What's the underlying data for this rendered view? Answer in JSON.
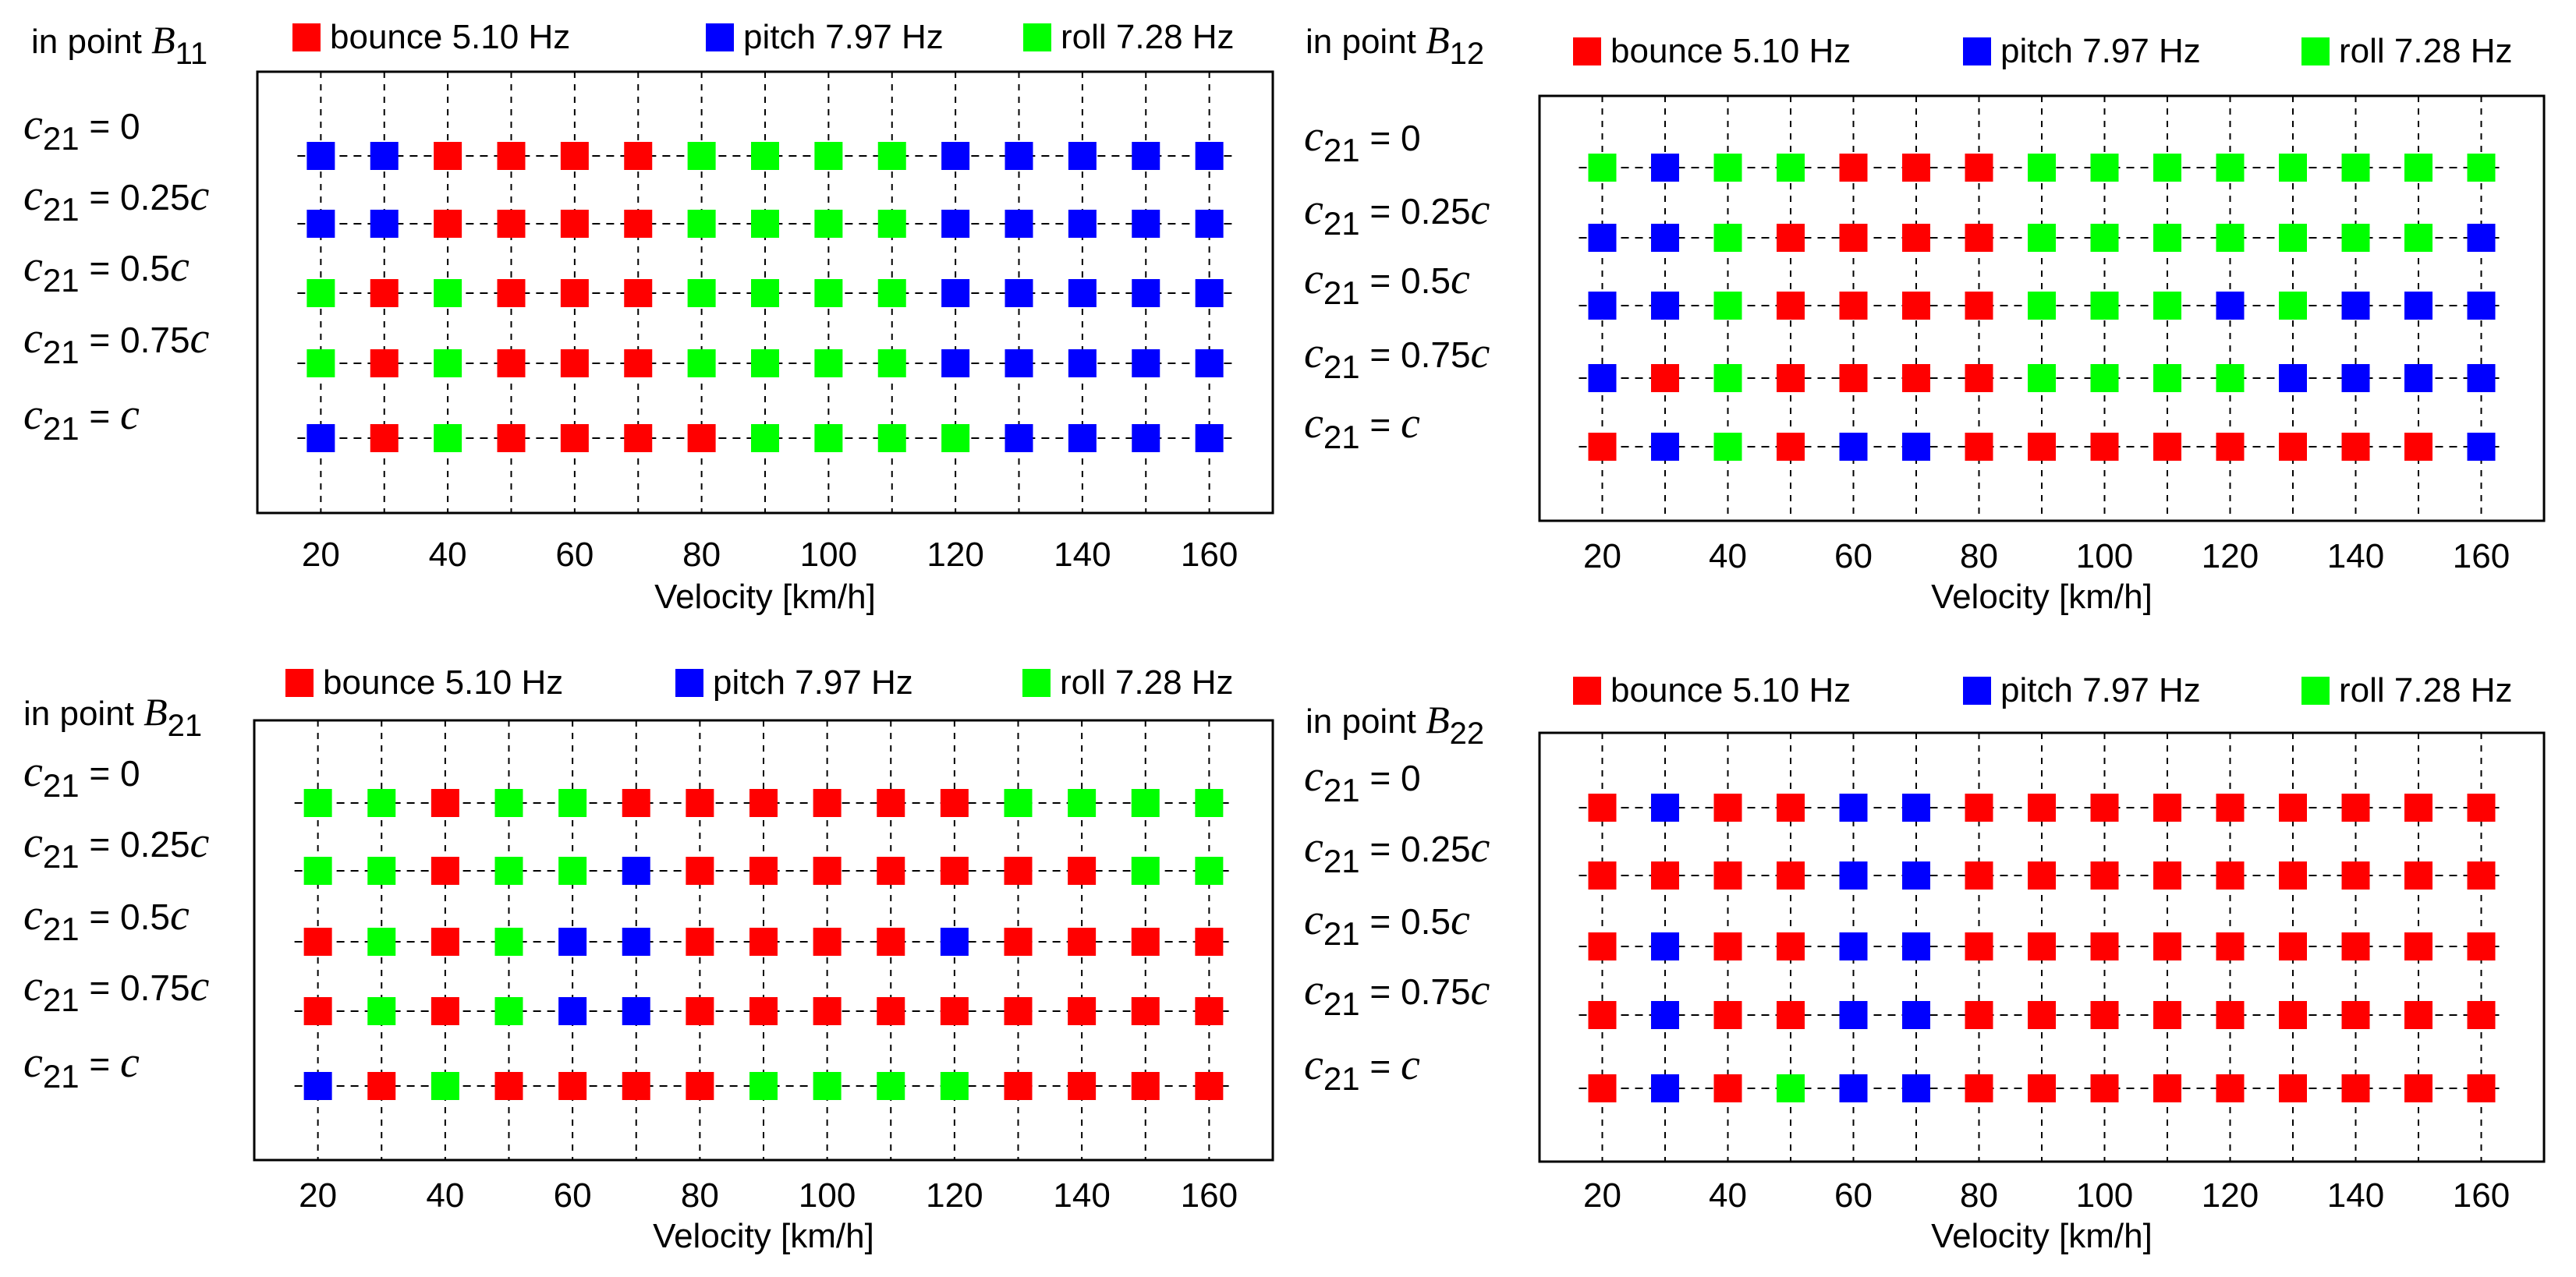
{
  "colors": {
    "bounce": "#ff0000",
    "pitch": "#0000ff",
    "roll": "#00ff00",
    "grid": "#000000",
    "frame": "#000000"
  },
  "legend": [
    {
      "key": "bounce",
      "name": "bounce",
      "freq": "5.10 Hz"
    },
    {
      "key": "pitch",
      "name": "pitch",
      "freq": "7.97 Hz"
    },
    {
      "key": "roll",
      "name": "roll",
      "freq": "7.28 Hz"
    }
  ],
  "chart_data": [
    {
      "type": "scatter",
      "title_prefix": "in point ",
      "title_var": "B",
      "title_sub": "11",
      "xlabel": "Velocity [km/h]",
      "xlim": [
        10,
        170
      ],
      "xticks": [
        20,
        40,
        60,
        80,
        100,
        120,
        140,
        160
      ],
      "x": [
        20,
        30,
        40,
        50,
        60,
        70,
        80,
        90,
        100,
        110,
        120,
        130,
        140,
        150,
        160
      ],
      "rows": [
        {
          "c": "c",
          "sub": "21",
          "eq": " = ",
          "val": "0",
          "val_c": "",
          "modes": [
            "pitch",
            "pitch",
            "bounce",
            "bounce",
            "bounce",
            "bounce",
            "roll",
            "roll",
            "roll",
            "roll",
            "pitch",
            "pitch",
            "pitch",
            "pitch",
            "pitch"
          ]
        },
        {
          "c": "c",
          "sub": "21",
          "eq": " = ",
          "val": "0.25",
          "val_c": "c",
          "modes": [
            "pitch",
            "pitch",
            "bounce",
            "bounce",
            "bounce",
            "bounce",
            "roll",
            "roll",
            "roll",
            "roll",
            "pitch",
            "pitch",
            "pitch",
            "pitch",
            "pitch"
          ]
        },
        {
          "c": "c",
          "sub": "21",
          "eq": " = ",
          "val": "0.5",
          "val_c": "c",
          "modes": [
            "roll",
            "bounce",
            "roll",
            "bounce",
            "bounce",
            "bounce",
            "roll",
            "roll",
            "roll",
            "roll",
            "pitch",
            "pitch",
            "pitch",
            "pitch",
            "pitch"
          ]
        },
        {
          "c": "c",
          "sub": "21",
          "eq": " = ",
          "val": "0.75",
          "val_c": "c",
          "modes": [
            "roll",
            "bounce",
            "roll",
            "bounce",
            "bounce",
            "bounce",
            "roll",
            "roll",
            "roll",
            "roll",
            "pitch",
            "pitch",
            "pitch",
            "pitch",
            "pitch"
          ]
        },
        {
          "c": "c",
          "sub": "21",
          "eq": " = ",
          "val": "",
          "val_c": "c",
          "modes": [
            "pitch",
            "bounce",
            "roll",
            "bounce",
            "bounce",
            "bounce",
            "bounce",
            "roll",
            "roll",
            "roll",
            "roll",
            "pitch",
            "pitch",
            "pitch",
            "pitch"
          ]
        }
      ]
    },
    {
      "type": "scatter",
      "title_prefix": "in point ",
      "title_var": "B",
      "title_sub": "12",
      "xlabel": "Velocity [km/h]",
      "xlim": [
        10,
        170
      ],
      "xticks": [
        20,
        40,
        60,
        80,
        100,
        120,
        140,
        160
      ],
      "x": [
        20,
        30,
        40,
        50,
        60,
        70,
        80,
        90,
        100,
        110,
        120,
        130,
        140,
        150,
        160
      ],
      "rows": [
        {
          "c": "c",
          "sub": "21",
          "eq": " = ",
          "val": "0",
          "val_c": "",
          "modes": [
            "roll",
            "pitch",
            "roll",
            "roll",
            "bounce",
            "bounce",
            "bounce",
            "roll",
            "roll",
            "roll",
            "roll",
            "roll",
            "roll",
            "roll",
            "roll"
          ]
        },
        {
          "c": "c",
          "sub": "21",
          "eq": " = ",
          "val": "0.25",
          "val_c": "c",
          "modes": [
            "pitch",
            "pitch",
            "roll",
            "bounce",
            "bounce",
            "bounce",
            "bounce",
            "roll",
            "roll",
            "roll",
            "roll",
            "roll",
            "roll",
            "roll",
            "pitch"
          ]
        },
        {
          "c": "c",
          "sub": "21",
          "eq": " = ",
          "val": "0.5",
          "val_c": "c",
          "modes": [
            "pitch",
            "pitch",
            "roll",
            "bounce",
            "bounce",
            "bounce",
            "bounce",
            "roll",
            "roll",
            "roll",
            "pitch",
            "roll",
            "pitch",
            "pitch",
            "pitch"
          ]
        },
        {
          "c": "c",
          "sub": "21",
          "eq": " = ",
          "val": "0.75",
          "val_c": "c",
          "modes": [
            "pitch",
            "bounce",
            "roll",
            "bounce",
            "bounce",
            "bounce",
            "bounce",
            "roll",
            "roll",
            "roll",
            "roll",
            "pitch",
            "pitch",
            "pitch",
            "pitch"
          ]
        },
        {
          "c": "c",
          "sub": "21",
          "eq": " = ",
          "val": "",
          "val_c": "c",
          "modes": [
            "bounce",
            "pitch",
            "roll",
            "bounce",
            "pitch",
            "pitch",
            "bounce",
            "bounce",
            "bounce",
            "bounce",
            "bounce",
            "bounce",
            "bounce",
            "bounce",
            "pitch"
          ]
        }
      ]
    },
    {
      "type": "scatter",
      "title_prefix": "in point ",
      "title_var": "B",
      "title_sub": "21",
      "xlabel": "Velocity [km/h]",
      "xlim": [
        10,
        170
      ],
      "xticks": [
        20,
        40,
        60,
        80,
        100,
        120,
        140,
        160
      ],
      "x": [
        20,
        30,
        40,
        50,
        60,
        70,
        80,
        90,
        100,
        110,
        120,
        130,
        140,
        150,
        160
      ],
      "rows": [
        {
          "c": "c",
          "sub": "21",
          "eq": " = ",
          "val": "0",
          "val_c": "",
          "modes": [
            "roll",
            "roll",
            "bounce",
            "roll",
            "roll",
            "bounce",
            "bounce",
            "bounce",
            "bounce",
            "bounce",
            "bounce",
            "roll",
            "roll",
            "roll",
            "roll"
          ]
        },
        {
          "c": "c",
          "sub": "21",
          "eq": " = ",
          "val": "0.25",
          "val_c": "c",
          "modes": [
            "roll",
            "roll",
            "bounce",
            "roll",
            "roll",
            "pitch",
            "bounce",
            "bounce",
            "bounce",
            "bounce",
            "bounce",
            "bounce",
            "bounce",
            "roll",
            "roll"
          ]
        },
        {
          "c": "c",
          "sub": "21",
          "eq": " = ",
          "val": "0.5",
          "val_c": "c",
          "modes": [
            "bounce",
            "roll",
            "bounce",
            "roll",
            "pitch",
            "pitch",
            "bounce",
            "bounce",
            "bounce",
            "bounce",
            "pitch",
            "bounce",
            "bounce",
            "bounce",
            "bounce"
          ]
        },
        {
          "c": "c",
          "sub": "21",
          "eq": " = ",
          "val": "0.75",
          "val_c": "c",
          "modes": [
            "bounce",
            "roll",
            "bounce",
            "roll",
            "pitch",
            "pitch",
            "bounce",
            "bounce",
            "bounce",
            "bounce",
            "bounce",
            "bounce",
            "bounce",
            "bounce",
            "bounce"
          ]
        },
        {
          "c": "c",
          "sub": "21",
          "eq": " = ",
          "val": "",
          "val_c": "c",
          "modes": [
            "pitch",
            "bounce",
            "roll",
            "bounce",
            "bounce",
            "bounce",
            "bounce",
            "roll",
            "roll",
            "roll",
            "roll",
            "bounce",
            "bounce",
            "bounce",
            "bounce"
          ]
        }
      ]
    },
    {
      "type": "scatter",
      "title_prefix": "in point ",
      "title_var": "B",
      "title_sub": "22",
      "xlabel": "Velocity [km/h]",
      "xlim": [
        10,
        170
      ],
      "xticks": [
        20,
        40,
        60,
        80,
        100,
        120,
        140,
        160
      ],
      "x": [
        20,
        30,
        40,
        50,
        60,
        70,
        80,
        90,
        100,
        110,
        120,
        130,
        140,
        150,
        160
      ],
      "rows": [
        {
          "c": "c",
          "sub": "21",
          "eq": " = ",
          "val": "0",
          "val_c": "",
          "modes": [
            "bounce",
            "pitch",
            "bounce",
            "bounce",
            "pitch",
            "pitch",
            "bounce",
            "bounce",
            "bounce",
            "bounce",
            "bounce",
            "bounce",
            "bounce",
            "bounce",
            "bounce"
          ]
        },
        {
          "c": "c",
          "sub": "21",
          "eq": " = ",
          "val": "0.25",
          "val_c": "c",
          "modes": [
            "bounce",
            "bounce",
            "bounce",
            "bounce",
            "pitch",
            "pitch",
            "bounce",
            "bounce",
            "bounce",
            "bounce",
            "bounce",
            "bounce",
            "bounce",
            "bounce",
            "bounce"
          ]
        },
        {
          "c": "c",
          "sub": "21",
          "eq": " = ",
          "val": "0.5",
          "val_c": "c",
          "modes": [
            "bounce",
            "pitch",
            "bounce",
            "bounce",
            "pitch",
            "pitch",
            "bounce",
            "bounce",
            "bounce",
            "bounce",
            "bounce",
            "bounce",
            "bounce",
            "bounce",
            "bounce"
          ]
        },
        {
          "c": "c",
          "sub": "21",
          "eq": " = ",
          "val": "0.75",
          "val_c": "c",
          "modes": [
            "bounce",
            "pitch",
            "bounce",
            "bounce",
            "pitch",
            "pitch",
            "bounce",
            "bounce",
            "bounce",
            "bounce",
            "bounce",
            "bounce",
            "bounce",
            "bounce",
            "bounce"
          ]
        },
        {
          "c": "c",
          "sub": "21",
          "eq": " = ",
          "val": "",
          "val_c": "c",
          "modes": [
            "bounce",
            "pitch",
            "bounce",
            "roll",
            "pitch",
            "pitch",
            "bounce",
            "bounce",
            "bounce",
            "bounce",
            "bounce",
            "bounce",
            "bounce",
            "bounce",
            "bounce"
          ]
        }
      ]
    }
  ]
}
